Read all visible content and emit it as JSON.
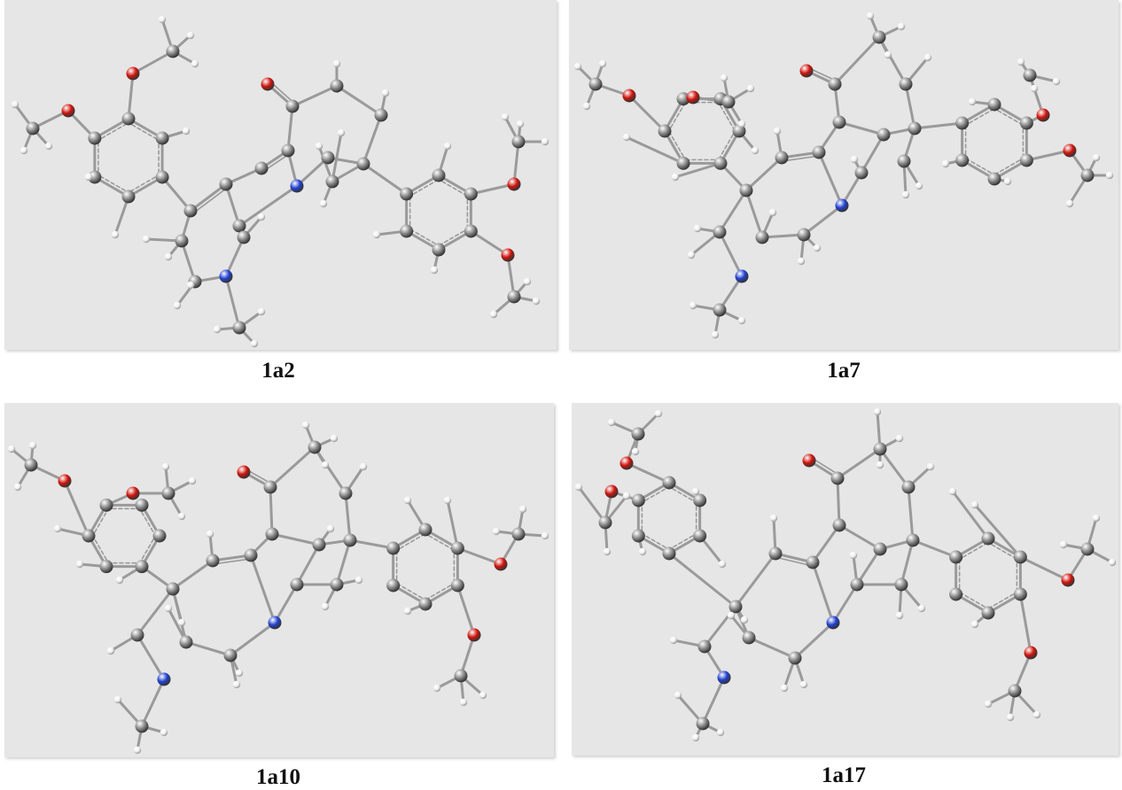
{
  "colors": {
    "background": "#e6e6e6",
    "carbon": "#8a8a8a",
    "hydrogen": "#f2f2f2",
    "oxygen": "#d0140c",
    "nitrogen": "#2040d0",
    "bond": "#9a9a9a"
  },
  "panels": [
    {
      "id": "p1",
      "label": "1a2"
    },
    {
      "id": "p2",
      "label": "1a7"
    },
    {
      "id": "p3",
      "label": "1a10"
    },
    {
      "id": "p4",
      "label": "1a17"
    }
  ]
}
